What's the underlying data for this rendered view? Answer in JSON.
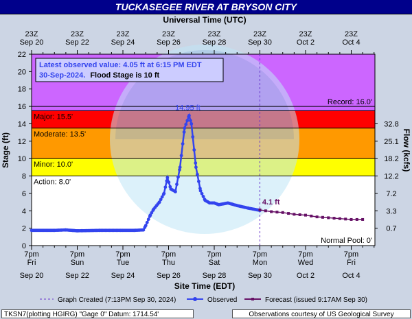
{
  "title": "TUCKASEGEE RIVER AT BRYSON CITY",
  "top_axis_title": "Universal Time (UTC)",
  "top_ticks": [
    {
      "t": "23Z",
      "d": "Sep 20",
      "day": 0
    },
    {
      "t": "23Z",
      "d": "Sep 22",
      "day": 2
    },
    {
      "t": "23Z",
      "d": "Sep 24",
      "day": 4
    },
    {
      "t": "23Z",
      "d": "Sep 26",
      "day": 6
    },
    {
      "t": "23Z",
      "d": "Sep 28",
      "day": 8
    },
    {
      "t": "23Z",
      "d": "Sep 30",
      "day": 10
    },
    {
      "t": "23Z",
      "d": "Oct  2",
      "day": 12
    },
    {
      "t": "23Z",
      "d": "Oct  4",
      "day": 14
    }
  ],
  "bottom_ticks": [
    {
      "t": "7pm",
      "w": "Fri",
      "d": "Sep 20",
      "day": 0
    },
    {
      "t": "7pm",
      "w": "Sun",
      "d": "Sep 22",
      "day": 2
    },
    {
      "t": "7pm",
      "w": "Tue",
      "d": "Sep 24",
      "day": 4
    },
    {
      "t": "7pm",
      "w": "Thu",
      "d": "Sep 26",
      "day": 6
    },
    {
      "t": "7pm",
      "w": "Sat",
      "d": "Sep 28",
      "day": 8
    },
    {
      "t": "7pm",
      "w": "Mon",
      "d": "Sep 30",
      "day": 10
    },
    {
      "t": "7pm",
      "w": "Wed",
      "d": "Oct 2",
      "day": 12
    },
    {
      "t": "7pm",
      "w": "Fri",
      "d": "Oct 4",
      "day": 14
    }
  ],
  "xlabel": "Site Time (EDT)",
  "ylabel": "Stage (ft)",
  "y2label": "Flow (kcfs)",
  "yticks": [
    0,
    2,
    4,
    6,
    8,
    10,
    12,
    14,
    16,
    18,
    20,
    22
  ],
  "flow_ticks": [
    {
      "stage": 2,
      "label": "0.7"
    },
    {
      "stage": 4,
      "label": "3.3"
    },
    {
      "stage": 6,
      "label": "7.2"
    },
    {
      "stage": 8,
      "label": "12.2"
    },
    {
      "stage": 10,
      "label": "18.2"
    },
    {
      "stage": 12,
      "label": "25.1"
    },
    {
      "stage": 14,
      "label": "32.8"
    }
  ],
  "observed_box": {
    "line1": "Latest observed value: 4.05 ft at 6:15 PM EDT",
    "line2a": "30-Sep-2024.",
    "line2b": "Flood Stage is 10 ft"
  },
  "thresholds": [
    {
      "name": "Record: 16.0'",
      "value": 16.0,
      "pos": "right"
    },
    {
      "name": "Major: 15.5'",
      "value": 15.5,
      "pos": "left"
    },
    {
      "name": "Moderate: 13.5'",
      "value": 13.5,
      "pos": "left"
    },
    {
      "name": "Minor: 10.0'",
      "value": 10.0,
      "pos": "left"
    },
    {
      "name": "Action: 8.0'",
      "value": 8.0,
      "pos": "left"
    },
    {
      "name": "Normal Pool: 0'",
      "value": 0,
      "pos": "right"
    }
  ],
  "bands": [
    {
      "from": 15.5,
      "to": 22,
      "color": "#cc66ff"
    },
    {
      "from": 13.5,
      "to": 15.5,
      "color": "#ff0000"
    },
    {
      "from": 10.0,
      "to": 13.5,
      "color": "#ff9900"
    },
    {
      "from": 8.0,
      "to": 10.0,
      "color": "#ffff00"
    },
    {
      "from": 0,
      "to": 8.0,
      "color": "#ffffff"
    }
  ],
  "colors": {
    "observed": "#3344ee",
    "forecast": "#661166",
    "title_bg": "#00008b",
    "page_bg": "#ccd5e4"
  },
  "annotations": {
    "peak": "14.95 ft",
    "forecast_start": "4.1 ft"
  },
  "legend": {
    "created": "Graph Created (7:13PM Sep 30, 2024)",
    "observed": "Observed",
    "forecast": "Forecast (issued 9:17AM Sep 30)"
  },
  "footer": {
    "left": "TKSN7(plotting HGIRG) \"Gage 0\" Datum: 1714.54'",
    "right": "Observations courtesy of US Geological Survey"
  },
  "watermark": "NATIONAL OCEANIC AND ATMOSPHERIC ADMINISTRATION",
  "chart_data": {
    "type": "line",
    "title": "TUCKASEGEE RIVER AT BRYSON CITY",
    "xlabel": "Site Time (EDT)",
    "ylabel": "Stage (ft)",
    "ylim": [
      0,
      22
    ],
    "xlim_days_from_sep20_7pm": [
      0,
      15
    ],
    "series": [
      {
        "name": "Observed",
        "x_day": [
          0,
          1,
          1.5,
          2,
          3,
          4,
          4.5,
          4.9,
          5.0,
          5.2,
          5.35,
          5.6,
          5.8,
          5.95,
          6.1,
          6.3,
          6.5,
          6.7,
          6.9,
          7.0,
          7.2,
          7.4,
          7.6,
          7.8,
          8.0,
          8.2,
          8.6,
          9.0,
          9.5,
          10.0
        ],
        "y": [
          1.75,
          1.75,
          1.8,
          1.7,
          1.75,
          1.75,
          1.75,
          1.8,
          2.3,
          3.5,
          4.2,
          5.0,
          6.0,
          7.8,
          6.5,
          6.2,
          9.0,
          13.5,
          14.95,
          14.0,
          9.0,
          6.3,
          5.2,
          4.9,
          4.9,
          4.7,
          4.9,
          4.6,
          4.3,
          4.05
        ]
      },
      {
        "name": "Forecast",
        "x_day": [
          10.0,
          10.5,
          11.0,
          11.5,
          12.0,
          12.5,
          13.0,
          13.5,
          14.0,
          14.5
        ],
        "y": [
          4.1,
          3.9,
          3.8,
          3.6,
          3.5,
          3.3,
          3.2,
          3.1,
          3.0,
          3.0
        ]
      }
    ]
  }
}
